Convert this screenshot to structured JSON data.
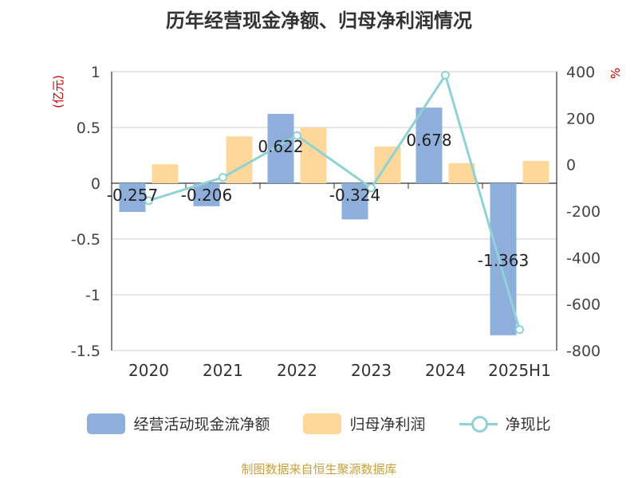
{
  "chart_data": {
    "type": "bar",
    "title": "历年经营现金净额、归母净利润情况",
    "categories": [
      "2020",
      "2021",
      "2022",
      "2023",
      "2024",
      "2025H1"
    ],
    "y_left_unit": "(亿元)",
    "y_right_unit": "%",
    "y_left_lim": [
      -1.5,
      1
    ],
    "y_left_ticks": [
      "1",
      "0.5",
      "0",
      "-0.5",
      "-1",
      "-1.5"
    ],
    "y_right_lim": [
      -800,
      400
    ],
    "y_right_ticks": [
      "400",
      "200",
      "0",
      "-200",
      "-400",
      "-600",
      "-800"
    ],
    "grid": true,
    "legend_position": "bottom",
    "series": [
      {
        "name": "经营活动现金流净额",
        "kind": "bar",
        "axis": "left",
        "color": "#8eafdc",
        "values": [
          -0.257,
          -0.206,
          0.622,
          -0.324,
          0.678,
          -1.363
        ],
        "labels": [
          "-0.257",
          "-0.206",
          "0.622",
          "-0.324",
          "0.678",
          "-1.363"
        ]
      },
      {
        "name": "归母净利润",
        "kind": "bar",
        "axis": "left",
        "color": "#fdd89a",
        "values": [
          0.17,
          0.42,
          0.5,
          0.33,
          0.18,
          0.2
        ]
      },
      {
        "name": "净现比",
        "kind": "line",
        "axis": "right",
        "color": "#8fd2d6",
        "values": [
          -155,
          -55,
          125,
          -100,
          385,
          -710
        ]
      }
    ]
  },
  "footer": {
    "source": "制图数据来自恒生聚源数据库"
  }
}
